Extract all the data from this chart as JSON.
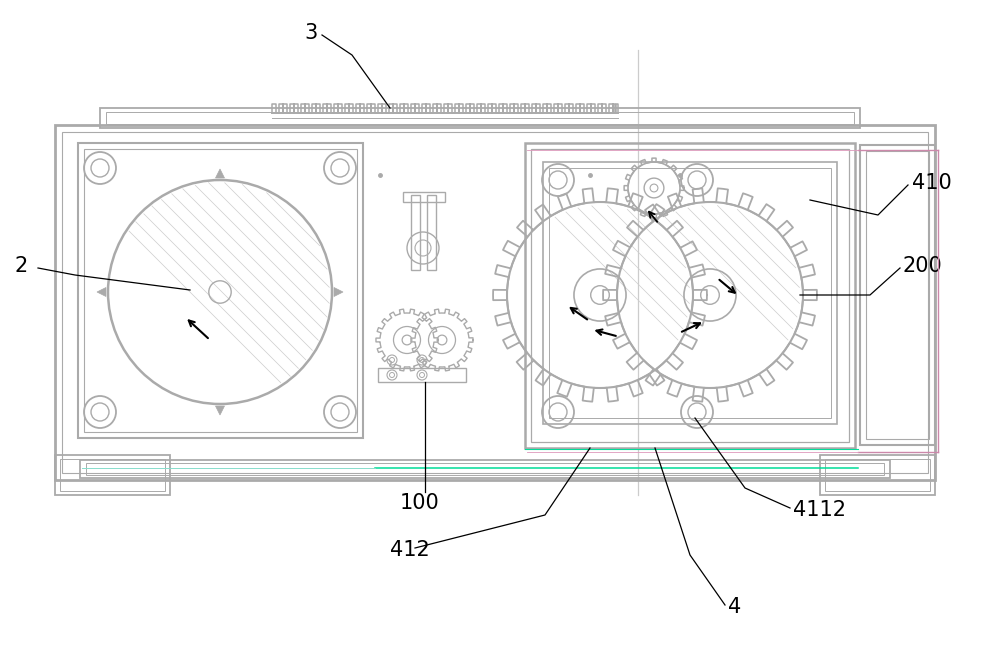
{
  "bg_color": "#ffffff",
  "line_color": "#aaaaaa",
  "dark_line": "#555555",
  "green_line": "#00dd99",
  "pink_line": "#cc88aa",
  "label_color": "#000000",
  "figsize": [
    10.0,
    6.45
  ],
  "dpi": 100
}
